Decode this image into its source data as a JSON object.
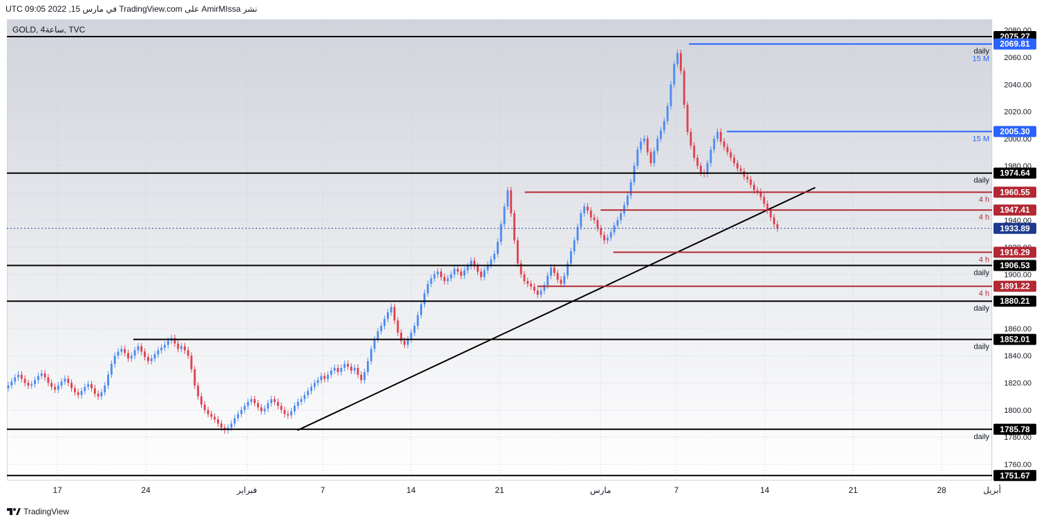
{
  "header": {
    "text": "نشر AmirMIssa على TradingView.com في مارس 15, 2022 09:05 UTC"
  },
  "symbol": {
    "label": "GOLD, 4ساعة, TVC"
  },
  "branding": {
    "text": "TradingView"
  },
  "colors": {
    "up": "#4c8cf0",
    "down": "#e0414f",
    "black": "#000000",
    "red_line": "#b22833",
    "blue_line": "#2962ff",
    "price": "#1d3a8f",
    "grid": "#c7c9d0"
  },
  "chart_data": {
    "type": "candlestick",
    "symbol": "GOLD",
    "timeframe": "4ساعة",
    "ylim": [
      1748,
      2088
    ],
    "y_ticks": [
      "2080.00",
      "2060.00",
      "2040.00",
      "2020.00",
      "2000.00",
      "1980.00",
      "1960.00",
      "1940.00",
      "1920.00",
      "1900.00",
      "1880.00",
      "1860.00",
      "1840.00",
      "1820.00",
      "1800.00",
      "1780.00",
      "1760.00"
    ],
    "x_ticks": [
      {
        "label": "17",
        "x": "2022-01-17"
      },
      {
        "label": "24",
        "x": "2022-01-24"
      },
      {
        "label": "فبراير",
        "x": "2022-02-01"
      },
      {
        "label": "7",
        "x": "2022-02-07"
      },
      {
        "label": "14",
        "x": "2022-02-14"
      },
      {
        "label": "21",
        "x": "2022-02-21"
      },
      {
        "label": "مارس",
        "x": "2022-03-01"
      },
      {
        "label": "7",
        "x": "2022-03-07"
      },
      {
        "label": "14",
        "x": "2022-03-14"
      },
      {
        "label": "21",
        "x": "2022-03-21"
      },
      {
        "label": "28",
        "x": "2022-03-28"
      },
      {
        "label": "أبريل",
        "x": "2022-04-01"
      }
    ],
    "x_range": [
      "2022-01-13",
      "2022-04-01"
    ],
    "last_date": "2022-03-15",
    "current_price": {
      "value": 1933.89,
      "label": "1933.89"
    },
    "levels": [
      {
        "value": 2075.27,
        "label": "2075.27",
        "kind": "daily",
        "start": "2022-01-13",
        "note": ""
      },
      {
        "value": 2069.81,
        "label": "2069.81",
        "kind": "blue",
        "start": "2022-03-08",
        "note": "daily",
        "note2": "15 M"
      },
      {
        "value": 2005.3,
        "label": "2005.30",
        "kind": "blue",
        "start": "2022-03-11",
        "note": "15 M"
      },
      {
        "value": 1974.64,
        "label": "1974.64",
        "kind": "daily",
        "start": "2022-01-13",
        "note": "daily"
      },
      {
        "value": 1960.55,
        "label": "1960.55",
        "kind": "red",
        "start": "2022-02-23",
        "note": "4 h"
      },
      {
        "value": 1947.41,
        "label": "1947.41",
        "kind": "red",
        "start": "2022-03-01",
        "note": "4 h"
      },
      {
        "value": 1916.29,
        "label": "1916.29",
        "kind": "red",
        "start": "2022-03-02",
        "note": "4 h"
      },
      {
        "value": 1906.53,
        "label": "1906.53",
        "kind": "daily",
        "start": "2022-01-13",
        "note": "daily"
      },
      {
        "value": 1891.22,
        "label": "1891.22",
        "kind": "red",
        "start": "2022-02-24",
        "note": "4 h"
      },
      {
        "value": 1880.21,
        "label": "1880.21",
        "kind": "daily",
        "start": "2022-01-13",
        "note": "daily"
      },
      {
        "value": 1852.01,
        "label": "1852.01",
        "kind": "daily",
        "start": "2022-01-23",
        "note": "daily"
      },
      {
        "value": 1785.78,
        "label": "1785.78",
        "kind": "daily",
        "start": "2022-01-13",
        "note": "daily"
      },
      {
        "value": 1751.67,
        "label": "1751.67",
        "kind": "daily",
        "start": "2022-01-13",
        "note": ""
      }
    ],
    "trendline": {
      "from": {
        "x": "2022-02-05",
        "y": 1785
      },
      "to": {
        "x": "2022-03-18",
        "y": 1964
      }
    },
    "closes": [
      1818,
      1821,
      1824,
      1826,
      1823,
      1820,
      1818,
      1819,
      1822,
      1825,
      1827,
      1824,
      1820,
      1817,
      1815,
      1818,
      1821,
      1823,
      1820,
      1816,
      1813,
      1811,
      1814,
      1817,
      1819,
      1816,
      1812,
      1810,
      1813,
      1818,
      1826,
      1834,
      1840,
      1843,
      1845,
      1842,
      1838,
      1840,
      1844,
      1847,
      1843,
      1839,
      1836,
      1838,
      1841,
      1844,
      1846,
      1848,
      1851,
      1853,
      1849,
      1845,
      1847,
      1844,
      1840,
      1830,
      1818,
      1810,
      1804,
      1800,
      1797,
      1795,
      1793,
      1790,
      1787,
      1785,
      1787,
      1790,
      1794,
      1797,
      1800,
      1803,
      1806,
      1808,
      1805,
      1802,
      1799,
      1801,
      1805,
      1808,
      1806,
      1803,
      1800,
      1797,
      1796,
      1799,
      1803,
      1806,
      1808,
      1811,
      1814,
      1817,
      1820,
      1822,
      1825,
      1823,
      1826,
      1829,
      1831,
      1828,
      1831,
      1834,
      1832,
      1829,
      1831,
      1826,
      1822,
      1828,
      1836,
      1845,
      1852,
      1858,
      1862,
      1867,
      1872,
      1876,
      1866,
      1857,
      1851,
      1848,
      1852,
      1857,
      1862,
      1870,
      1878,
      1886,
      1893,
      1897,
      1900,
      1902,
      1898,
      1895,
      1897,
      1900,
      1904,
      1902,
      1899,
      1903,
      1906,
      1910,
      1906,
      1902,
      1898,
      1903,
      1907,
      1911,
      1915,
      1924,
      1937,
      1950,
      1962,
      1945,
      1925,
      1908,
      1900,
      1895,
      1893,
      1891,
      1888,
      1885,
      1888,
      1892,
      1899,
      1905,
      1901,
      1896,
      1893,
      1899,
      1908,
      1917,
      1925,
      1935,
      1945,
      1950,
      1947,
      1942,
      1940,
      1934,
      1929,
      1925,
      1927,
      1931,
      1936,
      1940,
      1945,
      1951,
      1958,
      1968,
      1980,
      1992,
      1998,
      2000,
      1990,
      1982,
      1991,
      2000,
      2006,
      2013,
      2024,
      2040,
      2055,
      2063,
      2050,
      2025,
      2005,
      1995,
      1986,
      1980,
      1975,
      1974,
      1982,
      1992,
      2000,
      2005,
      1998,
      1994,
      1990,
      1986,
      1982,
      1978,
      1976,
      1972,
      1970,
      1966,
      1962,
      1961,
      1957,
      1952,
      1947,
      1942,
      1937,
      1933.89
    ]
  }
}
